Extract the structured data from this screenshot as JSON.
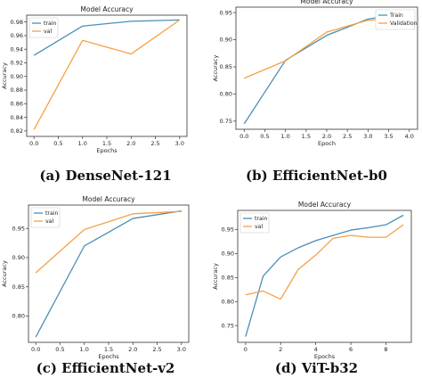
{
  "colors": {
    "train": "#4a8fb5",
    "val": "#f5a047",
    "axis": "#333333",
    "text": "#222222"
  },
  "chart_data": [
    {
      "type": "line",
      "title": "Model Accuracy",
      "xlabel": "Epochs",
      "ylabel": "Accuracy",
      "caption": "(a) DenseNet-121",
      "xlim": [
        -0.15,
        3.15
      ],
      "ylim": [
        0.812,
        0.99
      ],
      "xticks": [
        0.0,
        0.5,
        1.0,
        1.5,
        2.0,
        2.5,
        3.0
      ],
      "xtick_labels": [
        "0.0",
        "0.5",
        "1.0",
        "1.5",
        "2.0",
        "2.5",
        "3.0"
      ],
      "yticks": [
        0.82,
        0.84,
        0.86,
        0.88,
        0.9,
        0.92,
        0.94,
        0.96,
        0.98
      ],
      "ytick_labels": [
        "0.82",
        "0.84",
        "0.86",
        "0.88",
        "0.90",
        "0.92",
        "0.94",
        "0.96",
        "0.98"
      ],
      "legend": "top-left",
      "series": [
        {
          "name": "train",
          "x": [
            0,
            1,
            2,
            3
          ],
          "values": [
            0.931,
            0.974,
            0.981,
            0.983
          ]
        },
        {
          "name": "val",
          "x": [
            0,
            1,
            2,
            3
          ],
          "values": [
            0.822,
            0.953,
            0.933,
            0.983
          ]
        }
      ]
    },
    {
      "type": "line",
      "title": "Model Accuracy",
      "xlabel": "Epoch",
      "ylabel": "Accuracy",
      "caption": "(b) EfficientNet-b0",
      "xlim": [
        -0.2,
        4.2
      ],
      "ylim": [
        0.735,
        0.96
      ],
      "xticks": [
        0.0,
        0.5,
        1.0,
        1.5,
        2.0,
        2.5,
        3.0,
        3.5,
        4.0
      ],
      "xtick_labels": [
        "0.0",
        "0.5",
        "1.0",
        "1.5",
        "2.0",
        "2.5",
        "3.0",
        "3.5",
        "4.0"
      ],
      "yticks": [
        0.75,
        0.8,
        0.85,
        0.9,
        0.95
      ],
      "ytick_labels": [
        "0.75",
        "0.80",
        "0.85",
        "0.90",
        "0.95"
      ],
      "legend": "top-right",
      "series": [
        {
          "name": "Train",
          "x": [
            0,
            1,
            2,
            3,
            4
          ],
          "values": [
            0.745,
            0.862,
            0.908,
            0.938,
            0.95
          ]
        },
        {
          "name": "Validation",
          "x": [
            0,
            1,
            2,
            3,
            4
          ],
          "values": [
            0.829,
            0.861,
            0.914,
            0.936,
            0.938
          ]
        }
      ]
    },
    {
      "type": "line",
      "title": "Model Accuracy",
      "xlabel": "Epochs",
      "ylabel": "Accuracy",
      "caption": "(c) EfficientNet-v2",
      "xlim": [
        -0.15,
        3.15
      ],
      "ylim": [
        0.755,
        0.99
      ],
      "xticks": [
        0.0,
        0.5,
        1.0,
        1.5,
        2.0,
        2.5,
        3.0
      ],
      "xtick_labels": [
        "0.0",
        "0.5",
        "1.0",
        "1.5",
        "2.0",
        "2.5",
        "3.0"
      ],
      "yticks": [
        0.8,
        0.85,
        0.9,
        0.95
      ],
      "ytick_labels": [
        "0.80",
        "0.85",
        "0.90",
        "0.95"
      ],
      "legend": "top-left",
      "series": [
        {
          "name": "train",
          "x": [
            0,
            1,
            2,
            3
          ],
          "values": [
            0.764,
            0.92,
            0.967,
            0.98
          ]
        },
        {
          "name": "val",
          "x": [
            0,
            1,
            2,
            3
          ],
          "values": [
            0.874,
            0.948,
            0.975,
            0.979
          ]
        }
      ]
    },
    {
      "type": "line",
      "title": "Model Accuracy",
      "xlabel": "Epochs",
      "ylabel": "Accuracy",
      "caption": "(d) ViT-b32",
      "xlim": [
        -0.45,
        9.45
      ],
      "ylim": [
        0.715,
        0.99
      ],
      "xticks": [
        0,
        2,
        4,
        6,
        8
      ],
      "xtick_labels": [
        "0",
        "2",
        "4",
        "6",
        "8"
      ],
      "yticks": [
        0.75,
        0.8,
        0.85,
        0.9,
        0.95
      ],
      "ytick_labels": [
        "0.75",
        "0.80",
        "0.85",
        "0.90",
        "0.95"
      ],
      "legend": "top-left",
      "series": [
        {
          "name": "train",
          "x": [
            0,
            1,
            2,
            3,
            4,
            5,
            6,
            7,
            8,
            9
          ],
          "values": [
            0.727,
            0.853,
            0.893,
            0.912,
            0.927,
            0.938,
            0.949,
            0.954,
            0.96,
            0.98
          ]
        },
        {
          "name": "val",
          "x": [
            0,
            1,
            2,
            3,
            4,
            5,
            6,
            7,
            8,
            9
          ],
          "values": [
            0.814,
            0.822,
            0.805,
            0.867,
            0.897,
            0.932,
            0.938,
            0.934,
            0.934,
            0.96
          ]
        }
      ]
    }
  ]
}
